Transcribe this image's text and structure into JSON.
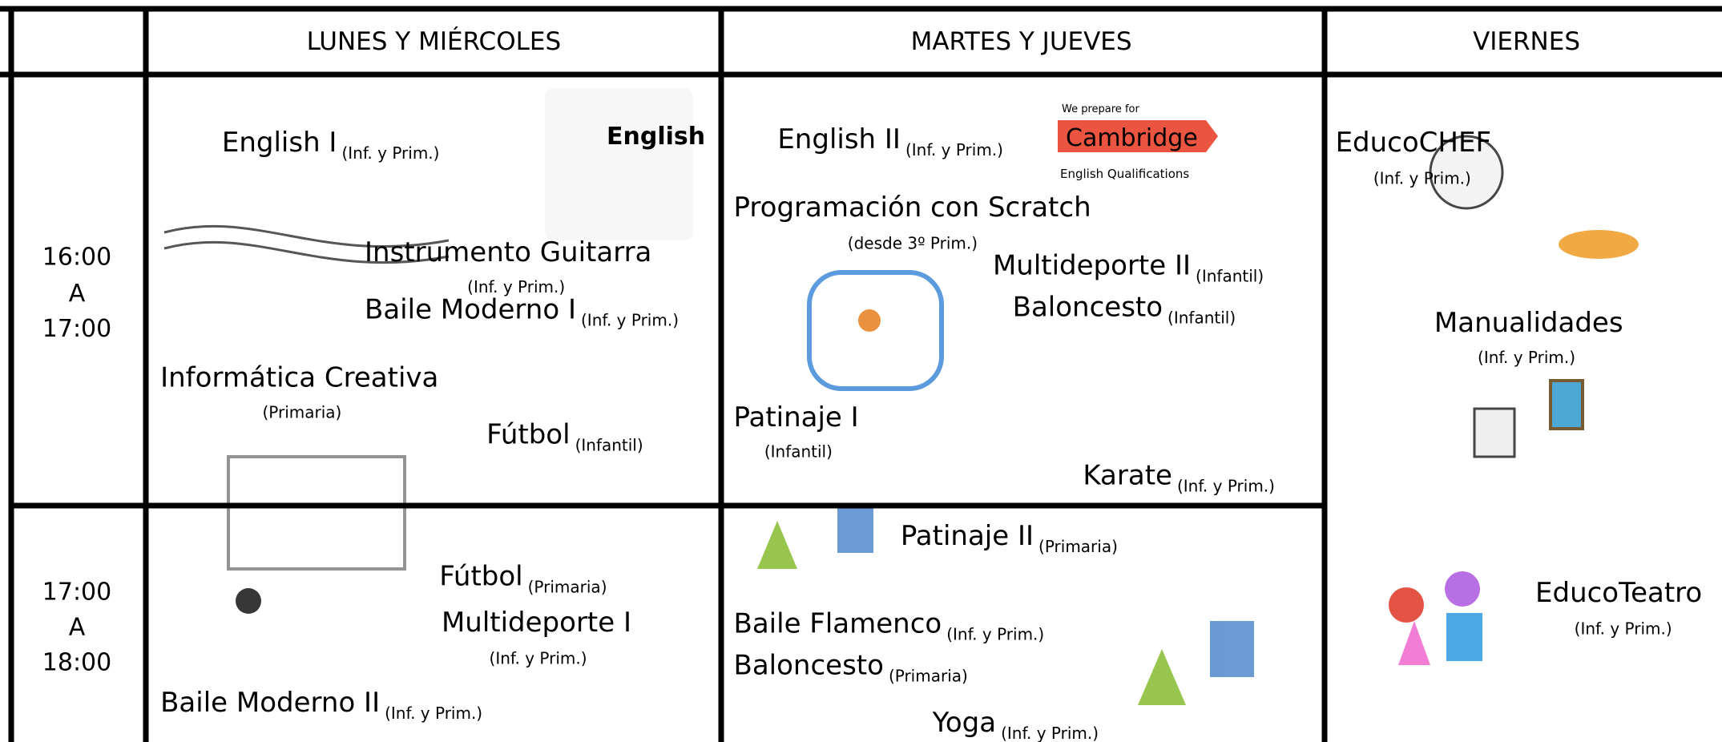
{
  "header": {
    "days": [
      "LUNES Y MIÉRCOLES",
      "MARTES Y JUEVES",
      "VIERNES"
    ]
  },
  "times": [
    [
      "16:00",
      "A",
      "17:00"
    ],
    [
      "17:00",
      "A",
      "18:00"
    ]
  ],
  "columns": [
    {
      "activities": [
        {
          "name": "English I",
          "note": "(Inf. y Prim.)"
        },
        {
          "name": "Instrumento Guitarra",
          "note": "(Inf. y Prim.)"
        },
        {
          "name": "Baile Moderno I",
          "note": "(Inf. y Prim.)"
        },
        {
          "name": "Informática Creativa",
          "note": "(Primaria)"
        },
        {
          "name": "Fútbol",
          "note": "(Infantil)"
        },
        {
          "name": "Fútbol",
          "note": "(Primaria)"
        },
        {
          "name": "Multideporte I",
          "note": "(Inf. y Prim.)"
        },
        {
          "name": "Baile Moderno II",
          "note": "(Inf. y Prim.)"
        }
      ]
    },
    {
      "activities": [
        {
          "name": "English II",
          "note": "(Inf. y Prim.)"
        },
        {
          "name": "Programación con Scratch",
          "note": "(desde 3º Prim.)"
        },
        {
          "name": "Multideporte II",
          "note": "(Infantil)"
        },
        {
          "name": "Baloncesto",
          "note": "(Infantil)"
        },
        {
          "name": "Patinaje I",
          "note": "(Infantil)"
        },
        {
          "name": "Karate",
          "note": "(Inf. y Prim.)"
        },
        {
          "name": "Patinaje II",
          "note": "(Primaria)"
        },
        {
          "name": "Baile Flamenco",
          "note": "(Inf. y Prim.)"
        },
        {
          "name": "Baloncesto",
          "note": "(Primaria)"
        },
        {
          "name": "Yoga",
          "note": "(Inf. y Prim.)"
        }
      ]
    },
    {
      "activities": [
        {
          "name": "EducoCHEF",
          "note": "(Inf. y Prim.)"
        },
        {
          "name": "Manualidades",
          "note": "(Inf. y Prim.)"
        },
        {
          "name": "EducoTeatro",
          "note": "(Inf. y Prim.)"
        }
      ]
    }
  ],
  "logos": {
    "english": "English",
    "cambridge_top": "We prepare for",
    "cambridge": "Cambridge",
    "cambridge_bottom": "English Qualifications"
  }
}
